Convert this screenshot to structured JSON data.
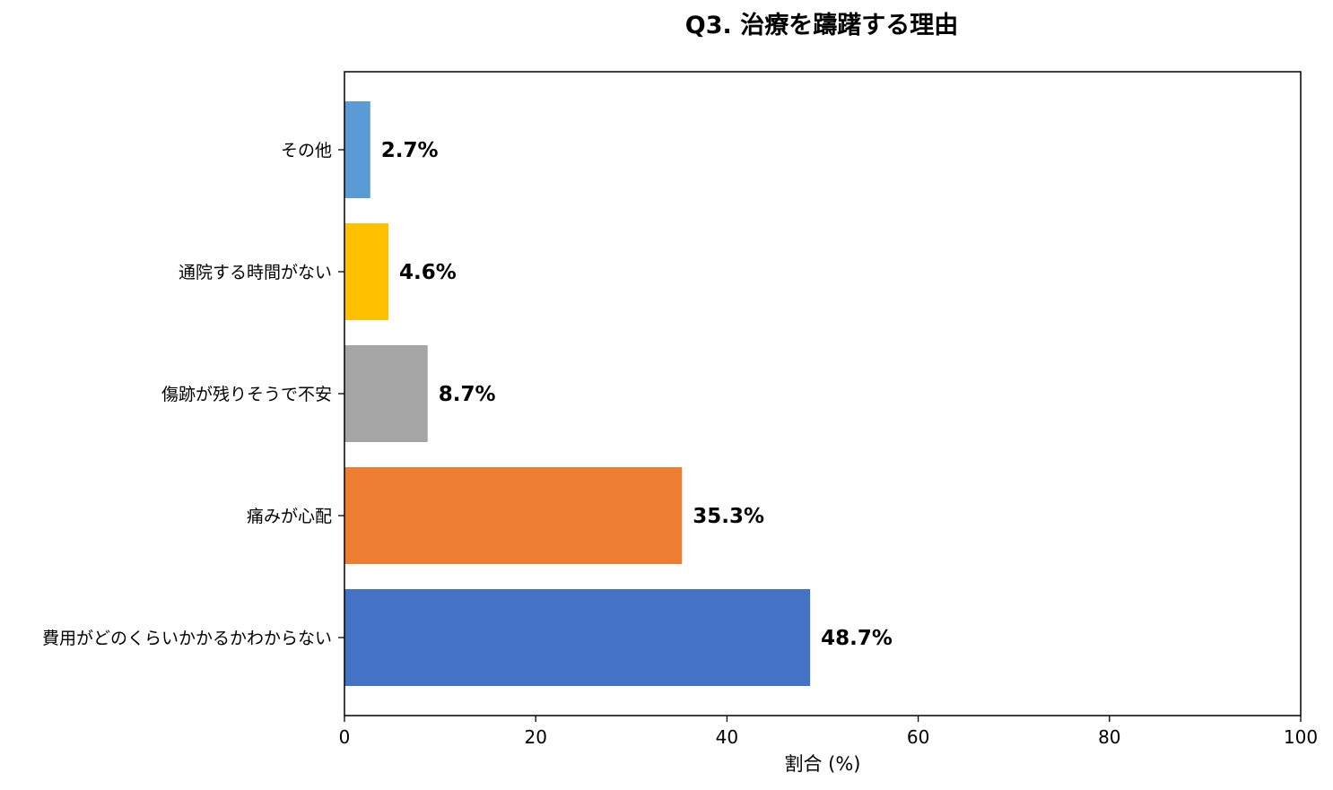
{
  "chart_data": {
    "type": "bar",
    "orientation": "horizontal",
    "title": "Q3. 治療を躊躇する理由",
    "xlabel": "割合 (%)",
    "ylabel": "",
    "xlim": [
      0,
      100
    ],
    "xticks": [
      "0",
      "20",
      "40",
      "60",
      "80",
      "100"
    ],
    "categories": [
      "費用がどのくらいかかるかわからない",
      "痛みが心配",
      "傷跡が残りそうで不安",
      "通院する時間がない",
      "その他"
    ],
    "values": [
      48.7,
      35.3,
      8.7,
      4.6,
      2.7
    ],
    "value_labels": [
      "48.7%",
      "35.3%",
      "8.7%",
      "4.6%",
      "2.7%"
    ],
    "colors": [
      "#4472c4",
      "#ed7d31",
      "#a5a5a5",
      "#ffc000",
      "#5b9bd5"
    ],
    "grid": false,
    "legend": "none"
  }
}
